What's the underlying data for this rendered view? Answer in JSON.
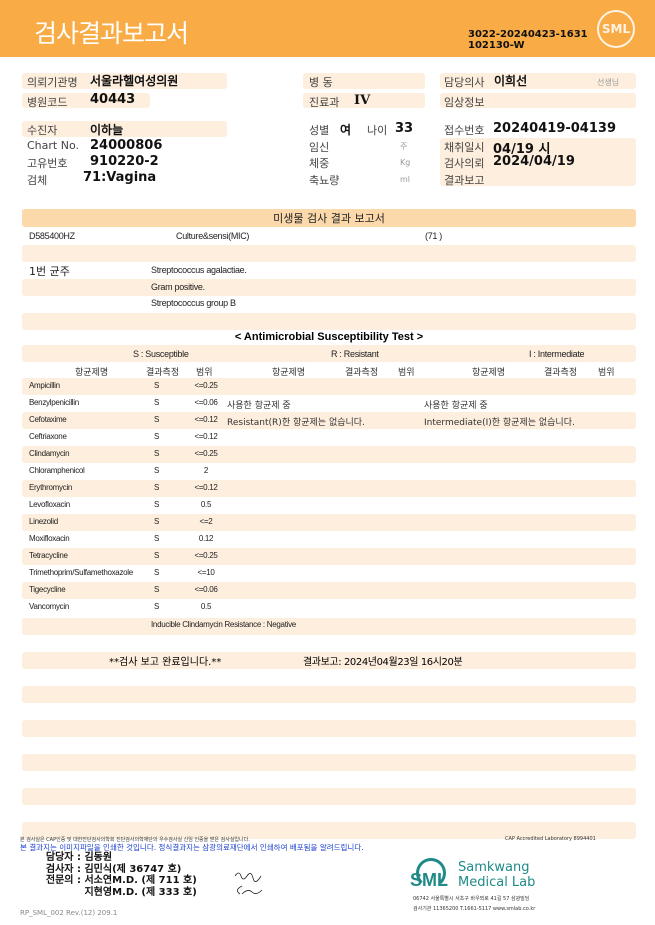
{
  "header": {
    "title": "검사결과보고서",
    "doc_no_line1": "3022-20240423-1631",
    "doc_no_line2": "102130-W",
    "logo": "SML"
  },
  "info": {
    "institution_label": "의뢰기관명",
    "institution": "서울라헬여성의원",
    "hospital_code_label": "병원코드",
    "hospital_code": "40443",
    "ward_label": "병  동",
    "ward": "",
    "department_label": "진료과",
    "department": "IV",
    "doctor_label": "담당의사",
    "doctor": "이희선",
    "doctor_suffix": "선생님",
    "clinical_info_label": "임상정보",
    "clinical_info": "",
    "patient_label": "수진자",
    "patient": "이하늘",
    "chart_label": "Chart No.",
    "chart": "24000806",
    "id_label": "고유번호",
    "id": "910220-2",
    "specimen_label": "검체",
    "specimen": "71:Vagina",
    "sex_label": "성별",
    "sex": "여",
    "age_label": "나이",
    "age": "33",
    "pregnancy_label": "임신",
    "pregnancy_unit": "주",
    "weight_label": "체중",
    "weight_unit": "Kg",
    "urine_label": "축뇨량",
    "urine_unit": "ml",
    "receipt_label": "접수번호",
    "receipt": "20240419-04139",
    "collection_label": "채취일시",
    "collection": "04/19 시",
    "request_label": "검사의뢰",
    "request": "2024/04/19",
    "report_label": "결과보고",
    "report": ""
  },
  "micro": {
    "section_title": "미생물 검사 결과 보고서",
    "test_code": "D585400HZ",
    "test_name": "Culture&sensi(MIC)",
    "specimen_code": "(71 )",
    "isolate_label": "1번 균주",
    "isolate_lines": [
      "Streptococcus agalactiae.",
      "Gram positive.",
      "Streptococcus group B"
    ]
  },
  "ast": {
    "title": "< Antimicrobial Susceptibility Test >",
    "legend": [
      "S : Susceptible",
      "R : Resistant",
      "I : Intermediate"
    ],
    "col_drug": "항균제명",
    "col_result": "결과측정",
    "col_range": "범위",
    "rows": [
      {
        "drug": "Ampicillin",
        "result": "S",
        "value": "<=0.25"
      },
      {
        "drug": "Benzylpenicillin",
        "result": "S",
        "value": "<=0.06"
      },
      {
        "drug": "Cefotaxime",
        "result": "S",
        "value": "<=0.12"
      },
      {
        "drug": "Ceftriaxone",
        "result": "S",
        "value": "<=0.12"
      },
      {
        "drug": "Clindamycin",
        "result": "S",
        "value": "<=0.25"
      },
      {
        "drug": "Chloramphenicol",
        "result": "S",
        "value": "2"
      },
      {
        "drug": "Erythromycin",
        "result": "S",
        "value": "<=0.12"
      },
      {
        "drug": "Levofloxacin",
        "result": "S",
        "value": "0.5"
      },
      {
        "drug": "Linezolid",
        "result": "S",
        "value": "<=2"
      },
      {
        "drug": "Moxifloxacin",
        "result": "S",
        "value": "0.12"
      },
      {
        "drug": "Tetracycline",
        "result": "S",
        "value": "<=0.25"
      },
      {
        "drug": "Trimethoprim/Sulfamethoxazole",
        "result": "S",
        "value": "<=10"
      },
      {
        "drug": "Tigecycline",
        "result": "S",
        "value": "<=0.06"
      },
      {
        "drug": "Vancomycin",
        "result": "S",
        "value": "0.5"
      }
    ],
    "r_note1": "사용한 항균제 중",
    "r_note2": "Resistant(R)한 항균제는 없습니다.",
    "i_note1": "사용한 항균제 중",
    "i_note2": "Intermediate(I)한 항균제는 없습니다.",
    "icr": "Inducible Clindamycin Resistance : Negative"
  },
  "completion": {
    "text": "**검사   보고   완료입니다.**",
    "report_time": "결과보고: 2024년04월23일 16시20분"
  },
  "footer": {
    "cap_note": "본 검사실은 CAP인증 및 대한진단검사의학회 진단검사의학재단의 우수검사실 신임 인증을 받은 검사실입니다.",
    "cap_id": "CAP Accredited Laboratory 8994401",
    "notice": "본 결과지는 이미지파일을 인쇄한 것입니다. 정식결과지는 삼광의료재단에서 인쇄하여 배포됨을 알려드립니다.",
    "staff": [
      {
        "role": "담당자 :",
        "name": "김동원"
      },
      {
        "role": "검사자 :",
        "name": "김민식(제 36747 호)"
      },
      {
        "role": "전문의 :",
        "name": "서소연M.D. (제 711 호)"
      },
      {
        "role": "",
        "name": "지현영M.D. (제 333 호)"
      }
    ],
    "lab_logo": "SML",
    "lab_name1": "Samkwang",
    "lab_name2": "Medical Lab",
    "address": "06742 서울특별시 서초구 바우뫼로 41길 57 삼광빌딩",
    "contact": "검사기관 11365200 T.1661-5117 www.smlab.co.kr",
    "form_code": "RP_SML_002 Rev.(12) 209.1"
  }
}
